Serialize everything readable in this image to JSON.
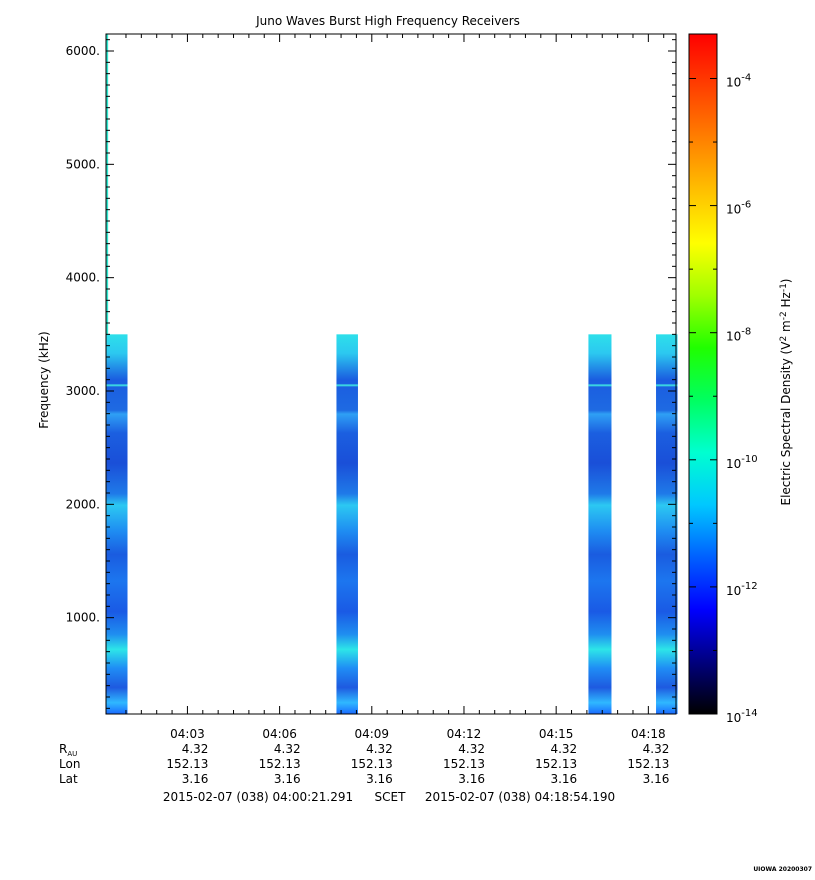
{
  "chart_data": {
    "type": "heatmap",
    "title": "Juno Waves Burst High Frequency Receivers",
    "ylabel": "Frequency (kHz)",
    "ylim": [
      150,
      6150
    ],
    "y_ticks": [
      "1000.",
      "2000.",
      "3000.",
      "4000.",
      "5000.",
      "6000."
    ],
    "y_tick_values": [
      1000,
      2000,
      3000,
      4000,
      5000,
      6000
    ],
    "x_range_minutes": [
      0.35,
      18.9
    ],
    "x_ticks": [
      "04:03",
      "04:06",
      "04:09",
      "04:12",
      "04:15",
      "04:18"
    ],
    "x_tick_minutes": [
      3,
      6,
      9,
      12,
      15,
      18
    ],
    "bursts": [
      {
        "start_min": 0.35,
        "end_min": 1.05,
        "fmax_khz": 3500
      },
      {
        "start_min": 7.85,
        "end_min": 8.55,
        "fmax_khz": 3500
      },
      {
        "start_min": 16.05,
        "end_min": 16.8,
        "fmax_khz": 3500
      },
      {
        "start_min": 18.25,
        "end_min": 18.95,
        "fmax_khz": 3500
      }
    ],
    "spike": {
      "start_min": 0.35,
      "end_min": 0.42,
      "fmin_khz": 3500,
      "fmax_khz": 6150
    },
    "colorbar": {
      "label": "Electric Spectral Density (V",
      "label_exps": [
        "2",
        "-2",
        "-1"
      ],
      "label_parts": [
        " m",
        " Hz",
        ")"
      ],
      "ticks": [
        "10",
        "10",
        "10",
        "10",
        "10",
        "10"
      ],
      "tick_exps": [
        "-14",
        "-12",
        "-10",
        "-8",
        "-6",
        "-4"
      ],
      "log_min": -14,
      "log_max": -3.3,
      "colors": [
        "#000000",
        "#00007f",
        "#0000ff",
        "#0060ff",
        "#00c8ff",
        "#00ffd0",
        "#00ff60",
        "#20ff00",
        "#a0ff00",
        "#ffff00",
        "#ffc000",
        "#ff8000",
        "#ff4000",
        "#ff0000"
      ]
    }
  },
  "ephemeris": {
    "rows": [
      {
        "label": "R",
        "label_sub": "AU",
        "values": [
          "4.32",
          "4.32",
          "4.32",
          "4.32",
          "4.32",
          "4.32"
        ]
      },
      {
        "label": "Lon",
        "values": [
          "152.13",
          "152.13",
          "152.13",
          "152.13",
          "152.13",
          "152.13"
        ]
      },
      {
        "label": "Lat",
        "values": [
          "3.16",
          "3.16",
          "3.16",
          "3.16",
          "3.16",
          "3.16"
        ]
      }
    ]
  },
  "time_range": {
    "start": "2015-02-07 (038) 04:00:21.291",
    "middle": "SCET",
    "end": "2015-02-07 (038) 04:18:54.190"
  },
  "footer": "UIOWA 20200307"
}
